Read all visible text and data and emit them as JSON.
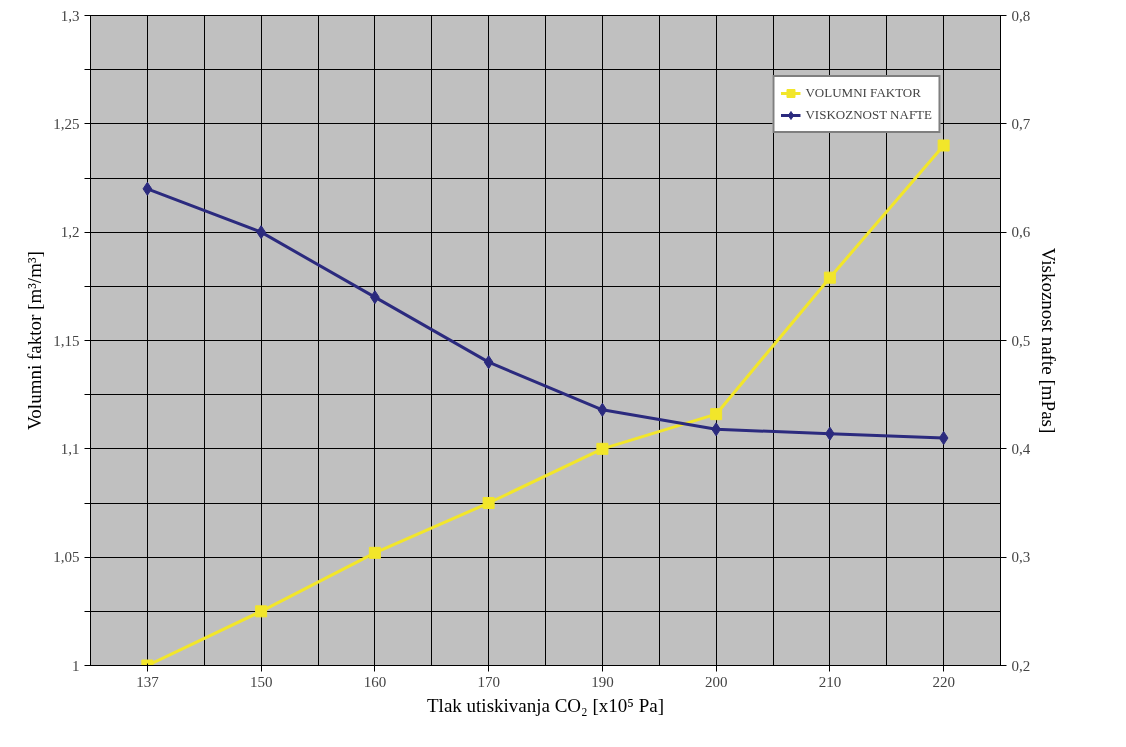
{
  "chart_data": {
    "type": "line",
    "xlabel": "Tlak utiskivanja CO₂ [x10⁵ Pa]",
    "ylabel": "Volumni faktor [m³/m³]",
    "y2label": "Viskoznost nafte [mPas]",
    "categories": [
      "137",
      "150",
      "160",
      "170",
      "190",
      "200",
      "210",
      "220"
    ],
    "series": [
      {
        "name": "VOLUMNI FAKTOR",
        "color": "#f2e62a",
        "marker": "square",
        "values": [
          1.0,
          1.025,
          1.052,
          1.075,
          1.1,
          1.116,
          1.179,
          1.24
        ]
      },
      {
        "name": "VISKOZNOST NAFTE",
        "color": "#2b2a7e",
        "marker": "diamond",
        "axis": "y2",
        "values": [
          0.64,
          0.6,
          0.54,
          0.48,
          0.436,
          0.418,
          0.414,
          0.41
        ]
      }
    ],
    "ylim": [
      1,
      1.3
    ],
    "yticks": [
      1,
      {
        "value": 1.025,
        "label": null
      },
      {
        "value": 1.05,
        "label": "1,05"
      },
      {
        "value": 1.075,
        "label": null
      },
      {
        "value": 1.1,
        "label": "1,1"
      },
      {
        "value": 1.125,
        "label": null
      },
      {
        "value": 1.15,
        "label": "1,15"
      },
      {
        "value": 1.175,
        "label": null
      },
      {
        "value": 1.2,
        "label": "1,2"
      },
      {
        "value": 1.225,
        "label": null
      },
      {
        "value": 1.25,
        "label": "1,25"
      },
      {
        "value": 1.275,
        "label": null
      },
      {
        "value": 1.3,
        "label": "1,3"
      }
    ],
    "y2lim": [
      0.2,
      0.8
    ],
    "y2ticks": [
      {
        "value": 0.2,
        "label": "0,2"
      },
      {
        "value": 0.3,
        "label": "0,3"
      },
      {
        "value": 0.4,
        "label": "0,4"
      },
      {
        "value": 0.5,
        "label": "0,5"
      },
      {
        "value": 0.6,
        "label": "0,6"
      },
      {
        "value": 0.7,
        "label": "0,7"
      },
      {
        "value": 0.8,
        "label": "0,8"
      }
    ],
    "grid": true,
    "legend": "top right",
    "line_style": "solid"
  }
}
